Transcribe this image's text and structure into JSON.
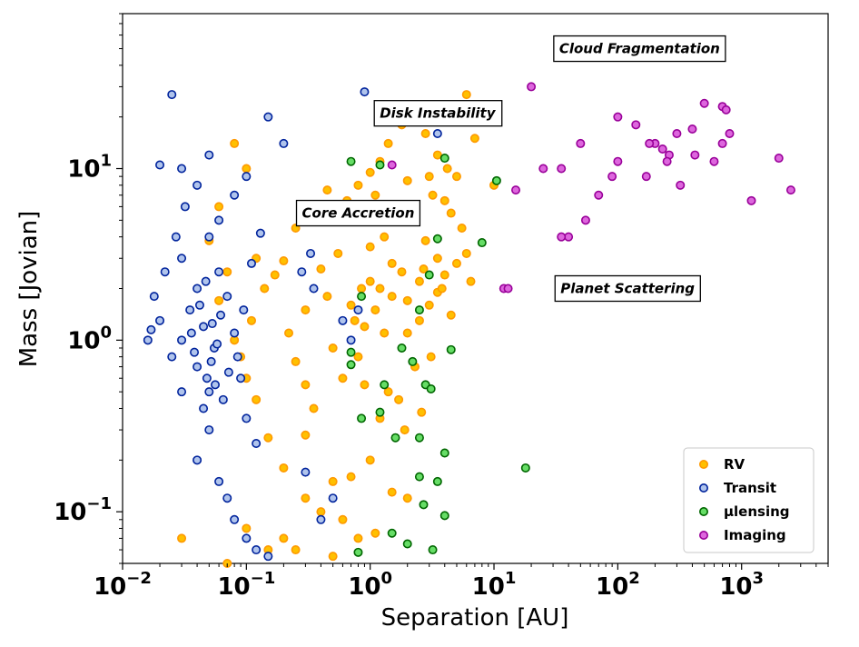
{
  "chart_data": {
    "type": "scatter",
    "xlabel": "Separation [AU]",
    "ylabel": "Mass [Jovian]",
    "xscale": "log",
    "yscale": "log",
    "xlim": [
      0.01,
      5000
    ],
    "ylim": [
      0.05,
      80
    ],
    "x_ticks": [
      {
        "base": "10",
        "exp": "−2",
        "value": 0.01
      },
      {
        "base": "10",
        "exp": "−1",
        "value": 0.1
      },
      {
        "base": "10",
        "exp": "0",
        "value": 1
      },
      {
        "base": "10",
        "exp": "1",
        "value": 10
      },
      {
        "base": "10",
        "exp": "2",
        "value": 100
      },
      {
        "base": "10",
        "exp": "3",
        "value": 1000
      }
    ],
    "y_ticks": [
      {
        "base": "10",
        "exp": "−1",
        "value": 0.1
      },
      {
        "base": "10",
        "exp": "0",
        "value": 1
      },
      {
        "base": "10",
        "exp": "1",
        "value": 10
      }
    ],
    "grid": false,
    "legend_position": "bottom-right",
    "annotations": [
      {
        "text": "Cloud Fragmentation",
        "x": 150,
        "y": 50
      },
      {
        "text": "Disk Instability",
        "x": 3.5,
        "y": 21
      },
      {
        "text": "Core Accretion",
        "x": 0.8,
        "y": 5.5
      },
      {
        "text": "Planet Scattering",
        "x": 120,
        "y": 2.0
      }
    ],
    "series": [
      {
        "name": "RV",
        "fill": "#ffc000",
        "edge": "#ff9900",
        "points": [
          [
            0.6,
            0.6
          ],
          [
            0.8,
            0.8
          ],
          [
            0.9,
            1.2
          ],
          [
            1.1,
            1.5
          ],
          [
            1.2,
            2.0
          ],
          [
            1.5,
            1.8
          ],
          [
            1.8,
            2.5
          ],
          [
            2.0,
            1.1
          ],
          [
            2.5,
            2.2
          ],
          [
            3.0,
            1.6
          ],
          [
            3.5,
            3.0
          ],
          [
            4.0,
            2.4
          ],
          [
            0.7,
            1.6
          ],
          [
            1.0,
            3.5
          ],
          [
            1.3,
            4.0
          ],
          [
            1.6,
            5.0
          ],
          [
            2.2,
            6.0
          ],
          [
            2.8,
            3.8
          ],
          [
            3.2,
            7.0
          ],
          [
            4.5,
            5.5
          ],
          [
            5.0,
            2.8
          ],
          [
            6.0,
            3.2
          ],
          [
            0.5,
            0.9
          ],
          [
            0.45,
            1.8
          ],
          [
            1.4,
            0.5
          ],
          [
            1.7,
            0.45
          ],
          [
            2.3,
            0.7
          ],
          [
            3.1,
            0.8
          ],
          [
            0.9,
            0.55
          ],
          [
            1.2,
            0.35
          ],
          [
            1.9,
            0.3
          ],
          [
            2.6,
            0.38
          ],
          [
            0.35,
            0.4
          ],
          [
            0.3,
            0.55
          ],
          [
            0.25,
            0.75
          ],
          [
            0.22,
            1.1
          ],
          [
            0.3,
            1.5
          ],
          [
            0.4,
            2.6
          ],
          [
            0.55,
            3.2
          ],
          [
            0.65,
            6.5
          ],
          [
            0.8,
            8.0
          ],
          [
            1.0,
            9.5
          ],
          [
            1.2,
            11.0
          ],
          [
            1.4,
            14.0
          ],
          [
            1.8,
            18.0
          ],
          [
            2.2,
            21.0
          ],
          [
            2.8,
            16.0
          ],
          [
            3.5,
            12.0
          ],
          [
            4.2,
            10.0
          ],
          [
            5.0,
            9.0
          ],
          [
            6.0,
            27.0
          ],
          [
            7.0,
            15.0
          ],
          [
            10.0,
            8.0
          ],
          [
            1.1,
            7.0
          ],
          [
            2.0,
            8.5
          ],
          [
            3.0,
            9.0
          ],
          [
            4.0,
            6.5
          ],
          [
            5.5,
            4.5
          ],
          [
            6.5,
            2.2
          ],
          [
            1.0,
            2.2
          ],
          [
            1.5,
            2.8
          ],
          [
            2.5,
            1.3
          ],
          [
            3.5,
            1.9
          ],
          [
            4.5,
            1.4
          ],
          [
            0.75,
            1.3
          ],
          [
            0.85,
            2.0
          ],
          [
            1.3,
            1.1
          ],
          [
            2.0,
            1.7
          ],
          [
            2.7,
            2.6
          ],
          [
            3.8,
            2.0
          ],
          [
            0.3,
            0.28
          ],
          [
            0.2,
            0.18
          ],
          [
            0.5,
            0.15
          ],
          [
            0.7,
            0.16
          ],
          [
            1.0,
            0.2
          ],
          [
            1.5,
            0.13
          ],
          [
            2.0,
            0.12
          ],
          [
            0.15,
            0.27
          ],
          [
            0.12,
            0.45
          ],
          [
            0.1,
            0.6
          ],
          [
            0.09,
            0.8
          ],
          [
            0.08,
            1.0
          ],
          [
            0.11,
            1.3
          ],
          [
            0.14,
            2.0
          ],
          [
            0.2,
            2.9
          ],
          [
            0.25,
            4.5
          ],
          [
            0.35,
            6.0
          ],
          [
            0.45,
            7.5
          ],
          [
            0.12,
            3.0
          ],
          [
            0.17,
            2.4
          ],
          [
            0.3,
            0.12
          ],
          [
            0.4,
            0.1
          ],
          [
            0.6,
            0.09
          ],
          [
            0.8,
            0.07
          ],
          [
            1.1,
            0.075
          ],
          [
            0.2,
            0.07
          ],
          [
            0.15,
            0.06
          ],
          [
            0.1,
            0.08
          ],
          [
            0.07,
            0.05
          ],
          [
            0.25,
            0.06
          ],
          [
            0.5,
            0.055
          ],
          [
            0.03,
            0.07
          ],
          [
            0.08,
            14.0
          ],
          [
            0.1,
            10.0
          ],
          [
            0.06,
            6.0
          ],
          [
            0.05,
            3.8
          ],
          [
            0.07,
            2.5
          ],
          [
            0.06,
            1.7
          ]
        ]
      },
      {
        "name": "Transit",
        "fill": "#b0c4ec",
        "edge": "#00239c",
        "points": [
          [
            0.03,
            1.0
          ],
          [
            0.035,
            1.5
          ],
          [
            0.04,
            0.7
          ],
          [
            0.045,
            1.2
          ],
          [
            0.05,
            0.5
          ],
          [
            0.055,
            0.9
          ],
          [
            0.04,
            2.0
          ],
          [
            0.03,
            3.0
          ],
          [
            0.05,
            4.0
          ],
          [
            0.06,
            2.5
          ],
          [
            0.07,
            1.8
          ],
          [
            0.08,
            1.1
          ],
          [
            0.09,
            0.6
          ],
          [
            0.1,
            0.35
          ],
          [
            0.12,
            0.25
          ],
          [
            0.05,
            0.3
          ],
          [
            0.04,
            0.2
          ],
          [
            0.06,
            0.15
          ],
          [
            0.07,
            0.12
          ],
          [
            0.08,
            0.09
          ],
          [
            0.1,
            0.07
          ],
          [
            0.12,
            0.06
          ],
          [
            0.15,
            0.055
          ],
          [
            0.03,
            0.5
          ],
          [
            0.025,
            0.8
          ],
          [
            0.02,
            1.3
          ],
          [
            0.018,
            1.8
          ],
          [
            0.022,
            2.5
          ],
          [
            0.027,
            4.0
          ],
          [
            0.032,
            6.0
          ],
          [
            0.04,
            8.0
          ],
          [
            0.05,
            12.0
          ],
          [
            0.03,
            10.0
          ],
          [
            0.02,
            10.5
          ],
          [
            0.025,
            27.0
          ],
          [
            0.15,
            20.0
          ],
          [
            0.2,
            14.0
          ],
          [
            0.1,
            9.0
          ],
          [
            0.08,
            7.0
          ],
          [
            0.06,
            5.0
          ],
          [
            0.045,
            0.4
          ],
          [
            0.048,
            0.6
          ],
          [
            0.052,
            0.75
          ],
          [
            0.058,
            0.95
          ],
          [
            0.062,
            1.4
          ],
          [
            0.036,
            1.1
          ],
          [
            0.038,
            0.85
          ],
          [
            0.042,
            1.6
          ],
          [
            0.047,
            2.2
          ],
          [
            0.053,
            1.25
          ],
          [
            0.056,
            0.55
          ],
          [
            0.065,
            0.45
          ],
          [
            0.072,
            0.65
          ],
          [
            0.085,
            0.8
          ],
          [
            0.095,
            1.5
          ],
          [
            0.11,
            2.8
          ],
          [
            0.13,
            4.2
          ],
          [
            0.3,
            0.17
          ],
          [
            0.35,
            2.0
          ],
          [
            0.5,
            0.12
          ],
          [
            0.4,
            0.09
          ],
          [
            0.6,
            1.3
          ],
          [
            0.9,
            28.0
          ],
          [
            0.7,
            1.0
          ],
          [
            0.8,
            1.5
          ],
          [
            1.0,
            6.0
          ],
          [
            3.5,
            16.0
          ],
          [
            0.33,
            3.2
          ],
          [
            0.28,
            2.5
          ],
          [
            0.016,
            1.0
          ],
          [
            0.017,
            1.15
          ]
        ]
      },
      {
        "name": "μlensing",
        "fill": "#66dd66",
        "edge": "#006600",
        "points": [
          [
            0.7,
            11.0
          ],
          [
            1.2,
            10.5
          ],
          [
            4.0,
            11.5
          ],
          [
            10.5,
            8.5
          ],
          [
            8.0,
            3.7
          ],
          [
            3.5,
            3.9
          ],
          [
            2.5,
            1.5
          ],
          [
            3.0,
            2.4
          ],
          [
            0.85,
            1.8
          ],
          [
            1.8,
            0.9
          ],
          [
            2.2,
            0.75
          ],
          [
            0.7,
            0.85
          ],
          [
            0.7,
            0.72
          ],
          [
            4.5,
            0.88
          ],
          [
            1.3,
            0.55
          ],
          [
            2.8,
            0.55
          ],
          [
            3.1,
            0.52
          ],
          [
            0.85,
            0.35
          ],
          [
            1.6,
            0.27
          ],
          [
            2.5,
            0.27
          ],
          [
            4.0,
            0.22
          ],
          [
            2.5,
            0.16
          ],
          [
            3.5,
            0.15
          ],
          [
            2.7,
            0.11
          ],
          [
            1.5,
            0.075
          ],
          [
            2.0,
            0.065
          ],
          [
            3.2,
            0.06
          ],
          [
            4.0,
            0.095
          ],
          [
            0.8,
            0.058
          ],
          [
            18.0,
            0.18
          ],
          [
            1.2,
            0.38
          ]
        ]
      },
      {
        "name": "Imaging",
        "fill": "#dd66dd",
        "edge": "#990099",
        "points": [
          [
            20,
            30
          ],
          [
            50,
            14
          ],
          [
            100,
            20
          ],
          [
            70,
            7
          ],
          [
            40,
            4.0
          ],
          [
            35,
            4.0
          ],
          [
            55,
            5
          ],
          [
            15,
            7.5
          ],
          [
            12,
            2.0
          ],
          [
            25,
            10
          ],
          [
            35,
            10
          ],
          [
            90,
            9
          ],
          [
            100,
            11
          ],
          [
            140,
            18
          ],
          [
            170,
            9
          ],
          [
            200,
            14
          ],
          [
            230,
            13
          ],
          [
            180,
            14
          ],
          [
            260,
            12
          ],
          [
            300,
            16
          ],
          [
            320,
            8
          ],
          [
            400,
            17
          ],
          [
            500,
            24
          ],
          [
            420,
            12
          ],
          [
            600,
            11
          ],
          [
            700,
            23
          ],
          [
            750,
            22
          ],
          [
            800,
            16
          ],
          [
            700,
            14
          ],
          [
            1200,
            6.5
          ],
          [
            2000,
            11.5
          ],
          [
            2500,
            7.5
          ],
          [
            13,
            2.0
          ],
          [
            250,
            11
          ],
          [
            1.5,
            10.5
          ]
        ]
      }
    ]
  }
}
